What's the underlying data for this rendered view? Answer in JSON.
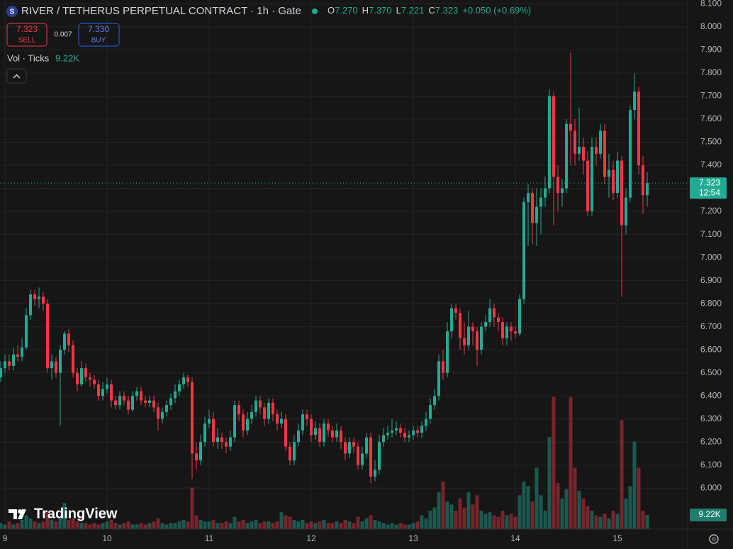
{
  "chart_data": {
    "type": "candlestick",
    "title": "RIVER / TETHERUS PERPETUAL CONTRACT · 1h · Gate",
    "categories": [
      null,
      "9",
      null,
      null,
      null,
      null,
      null,
      null,
      null,
      null,
      null,
      null,
      null,
      null,
      null,
      null,
      null,
      null,
      null,
      null,
      null,
      null,
      null,
      null,
      null,
      "10",
      null,
      null,
      null,
      null,
      null,
      null,
      null,
      null,
      null,
      null,
      null,
      null,
      null,
      null,
      null,
      null,
      null,
      null,
      null,
      null,
      null,
      null,
      null,
      "11",
      null,
      null,
      null,
      null,
      null,
      null,
      null,
      null,
      null,
      null,
      null,
      null,
      null,
      null,
      null,
      null,
      null,
      null,
      null,
      null,
      null,
      null,
      null,
      "12",
      null,
      null,
      null,
      null,
      null,
      null,
      null,
      null,
      null,
      null,
      null,
      null,
      null,
      null,
      null,
      null,
      null,
      null,
      null,
      null,
      null,
      null,
      null,
      "13",
      null,
      null,
      null,
      null,
      null,
      null,
      null,
      null,
      null,
      null,
      null,
      null,
      null,
      null,
      null,
      null,
      null,
      null,
      null,
      null,
      null,
      null,
      null,
      "14",
      null,
      null,
      null,
      null,
      null,
      null,
      null,
      null,
      null,
      null,
      null,
      null,
      null,
      null,
      null,
      null,
      null,
      null,
      null,
      null,
      null,
      null,
      null,
      "15",
      null,
      null,
      null,
      null,
      null,
      null,
      null
    ],
    "open": [
      6.48,
      6.52,
      6.55,
      6.53,
      6.58,
      6.57,
      6.61,
      6.75,
      6.84,
      6.82,
      6.83,
      6.8,
      6.52,
      6.55,
      6.5,
      6.6,
      6.67,
      6.62,
      6.5,
      6.45,
      6.52,
      6.48,
      6.47,
      6.45,
      6.4,
      6.43,
      6.45,
      6.38,
      6.36,
      6.4,
      6.38,
      6.34,
      6.4,
      6.42,
      6.38,
      6.37,
      6.38,
      6.35,
      6.3,
      6.33,
      6.36,
      6.39,
      6.42,
      6.45,
      6.48,
      6.46,
      6.15,
      6.12,
      6.2,
      6.28,
      6.3,
      6.2,
      6.22,
      6.2,
      6.18,
      6.22,
      6.36,
      6.32,
      6.25,
      6.3,
      6.33,
      6.38,
      6.35,
      6.3,
      6.37,
      6.32,
      6.28,
      6.3,
      6.18,
      6.12,
      6.2,
      6.25,
      6.32,
      6.3,
      6.23,
      6.26,
      6.2,
      6.28,
      6.25,
      6.22,
      6.25,
      6.2,
      6.15,
      6.2,
      6.18,
      6.1,
      6.15,
      6.22,
      6.05,
      6.08,
      6.2,
      6.23,
      6.24,
      6.25,
      6.26,
      6.24,
      6.22,
      6.23,
      6.25,
      6.24,
      6.27,
      6.3,
      6.36,
      6.4,
      6.55,
      6.5,
      6.68,
      6.78,
      6.76,
      6.65,
      6.62,
      6.7,
      6.68,
      6.6,
      6.7,
      6.72,
      6.78,
      6.74,
      6.72,
      6.65,
      6.7,
      6.68,
      6.67,
      6.82,
      7.24,
      7.28,
      7.15,
      7.22,
      7.26,
      7.3,
      7.7,
      7.35,
      7.28,
      7.3,
      7.58,
      7.55,
      7.45,
      7.48,
      7.42,
      7.2,
      7.48,
      7.45,
      7.55,
      7.35,
      7.38,
      7.28,
      7.42,
      7.14,
      7.26,
      7.64,
      7.72,
      7.4,
      7.27
    ],
    "high": [
      6.55,
      6.58,
      6.58,
      6.61,
      6.62,
      6.65,
      6.78,
      6.86,
      6.86,
      6.87,
      6.85,
      6.82,
      6.58,
      6.57,
      6.62,
      6.68,
      6.69,
      6.64,
      6.52,
      6.55,
      6.54,
      6.5,
      6.49,
      6.47,
      6.46,
      6.48,
      6.47,
      6.4,
      6.42,
      6.42,
      6.4,
      6.42,
      6.44,
      6.44,
      6.4,
      6.4,
      6.4,
      6.37,
      6.35,
      6.38,
      6.41,
      6.45,
      6.47,
      6.5,
      6.49,
      6.48,
      6.2,
      6.23,
      6.31,
      6.34,
      6.33,
      6.26,
      6.24,
      6.22,
      6.25,
      6.38,
      6.38,
      6.34,
      6.33,
      6.36,
      6.4,
      6.4,
      6.37,
      6.39,
      6.39,
      6.34,
      6.33,
      6.32,
      6.2,
      6.23,
      6.28,
      6.34,
      6.34,
      6.32,
      6.29,
      6.28,
      6.3,
      6.3,
      6.27,
      6.28,
      6.27,
      6.22,
      6.22,
      6.22,
      6.2,
      6.18,
      6.24,
      6.24,
      6.12,
      6.23,
      6.26,
      6.27,
      6.3,
      6.29,
      6.28,
      6.26,
      6.25,
      6.27,
      6.27,
      6.29,
      6.33,
      6.39,
      6.43,
      6.58,
      6.6,
      6.72,
      6.8,
      6.8,
      6.78,
      6.72,
      6.77,
      6.72,
      6.7,
      6.72,
      6.75,
      6.82,
      6.8,
      6.76,
      6.74,
      6.72,
      6.72,
      6.7,
      6.84,
      7.26,
      7.32,
      7.3,
      7.3,
      7.3,
      7.35,
      7.73,
      7.72,
      7.4,
      7.34,
      7.6,
      7.89,
      7.6,
      7.65,
      7.52,
      7.46,
      7.52,
      7.52,
      7.58,
      7.58,
      7.45,
      7.42,
      7.46,
      7.44,
      7.3,
      7.66,
      7.8,
      7.74,
      7.44,
      7.37
    ],
    "low": [
      6.46,
      6.5,
      6.51,
      6.51,
      6.55,
      6.55,
      6.6,
      6.73,
      6.79,
      6.78,
      6.77,
      6.5,
      6.47,
      6.48,
      6.27,
      6.58,
      6.59,
      6.48,
      6.42,
      6.44,
      6.46,
      6.44,
      6.43,
      6.38,
      6.38,
      6.41,
      6.35,
      6.34,
      6.34,
      6.36,
      6.32,
      6.33,
      6.38,
      6.36,
      6.35,
      6.35,
      6.33,
      6.25,
      6.28,
      6.31,
      6.34,
      6.37,
      6.4,
      6.43,
      6.44,
      6.04,
      6.08,
      6.1,
      6.18,
      6.26,
      6.18,
      6.17,
      6.17,
      6.15,
      6.16,
      6.2,
      6.29,
      6.22,
      6.23,
      6.28,
      6.31,
      6.32,
      6.27,
      6.28,
      6.29,
      6.25,
      6.26,
      6.16,
      6.1,
      6.1,
      6.18,
      6.23,
      6.27,
      6.2,
      6.21,
      6.18,
      6.18,
      6.22,
      6.2,
      6.2,
      6.17,
      6.12,
      6.13,
      6.15,
      6.08,
      6.08,
      6.13,
      6.02,
      6.03,
      6.06,
      6.18,
      6.21,
      6.22,
      6.23,
      6.22,
      6.2,
      6.2,
      6.21,
      6.22,
      6.22,
      6.25,
      6.28,
      6.34,
      6.38,
      6.47,
      6.48,
      6.65,
      6.73,
      6.6,
      6.58,
      6.6,
      6.62,
      6.53,
      6.58,
      6.68,
      6.7,
      6.7,
      6.68,
      6.62,
      6.62,
      6.64,
      6.65,
      6.66,
      6.8,
      7.05,
      7.06,
      7.05,
      7.1,
      7.22,
      7.28,
      7.14,
      7.2,
      7.22,
      7.28,
      7.4,
      7.4,
      7.42,
      7.36,
      7.18,
      7.18,
      7.4,
      7.43,
      7.32,
      7.26,
      7.25,
      7.26,
      6.83,
      7.1,
      7.24,
      7.6,
      7.36,
      7.19,
      7.221
    ],
    "close": [
      6.52,
      6.55,
      6.53,
      6.58,
      6.57,
      6.61,
      6.75,
      6.84,
      6.82,
      6.83,
      6.8,
      6.52,
      6.55,
      6.5,
      6.6,
      6.67,
      6.62,
      6.5,
      6.45,
      6.52,
      6.48,
      6.47,
      6.45,
      6.4,
      6.43,
      6.45,
      6.38,
      6.36,
      6.4,
      6.38,
      6.34,
      6.4,
      6.42,
      6.38,
      6.37,
      6.38,
      6.35,
      6.3,
      6.33,
      6.36,
      6.39,
      6.42,
      6.45,
      6.48,
      6.46,
      6.15,
      6.12,
      6.2,
      6.28,
      6.3,
      6.2,
      6.22,
      6.2,
      6.18,
      6.22,
      6.36,
      6.32,
      6.25,
      6.3,
      6.33,
      6.38,
      6.35,
      6.3,
      6.37,
      6.32,
      6.28,
      6.3,
      6.18,
      6.12,
      6.2,
      6.25,
      6.32,
      6.3,
      6.23,
      6.26,
      6.2,
      6.28,
      6.25,
      6.22,
      6.25,
      6.2,
      6.15,
      6.2,
      6.18,
      6.1,
      6.15,
      6.22,
      6.05,
      6.08,
      6.2,
      6.23,
      6.24,
      6.25,
      6.26,
      6.24,
      6.22,
      6.23,
      6.25,
      6.24,
      6.27,
      6.3,
      6.36,
      6.4,
      6.55,
      6.5,
      6.68,
      6.78,
      6.76,
      6.65,
      6.62,
      6.7,
      6.68,
      6.6,
      6.7,
      6.72,
      6.78,
      6.74,
      6.72,
      6.65,
      6.7,
      6.68,
      6.67,
      6.82,
      7.24,
      7.28,
      7.15,
      7.22,
      7.26,
      7.3,
      7.7,
      7.35,
      7.28,
      7.3,
      7.58,
      7.55,
      7.45,
      7.48,
      7.42,
      7.2,
      7.48,
      7.45,
      7.55,
      7.35,
      7.38,
      7.28,
      7.42,
      7.14,
      7.26,
      7.64,
      7.72,
      7.4,
      7.27,
      7.323
    ],
    "volume": [
      4000,
      3000,
      5000,
      3000,
      4000,
      6000,
      9000,
      7000,
      5000,
      4000,
      5000,
      12000,
      6000,
      5000,
      8000,
      17000,
      6000,
      7000,
      5000,
      4000,
      4000,
      3000,
      4000,
      3000,
      4000,
      5000,
      6000,
      4000,
      3000,
      4000,
      5000,
      3000,
      3000,
      4000,
      3000,
      4000,
      5000,
      7000,
      4000,
      3000,
      4000,
      4000,
      5000,
      6000,
      5000,
      27000,
      9000,
      6000,
      5000,
      5000,
      6000,
      4000,
      4000,
      5000,
      4000,
      8000,
      5000,
      6000,
      4000,
      5000,
      6000,
      4000,
      5000,
      5000,
      4000,
      5000,
      11000,
      9000,
      8000,
      6000,
      5000,
      6000,
      4000,
      5000,
      4000,
      5000,
      6000,
      4000,
      4000,
      5000,
      4000,
      6000,
      5000,
      4000,
      8000,
      5000,
      7000,
      9000,
      6000,
      5000,
      4000,
      3000,
      4000,
      3000,
      4000,
      3000,
      3000,
      4000,
      5000,
      9000,
      7000,
      12000,
      14000,
      24000,
      31000,
      18000,
      16000,
      12000,
      20000,
      14000,
      24000,
      16000,
      22000,
      12000,
      10000,
      11000,
      9000,
      8000,
      12000,
      9000,
      10000,
      8000,
      22000,
      31000,
      28000,
      18000,
      40000,
      22000,
      12000,
      60000,
      86000,
      30000,
      20000,
      26000,
      86000,
      40000,
      25000,
      20000,
      15000,
      12000,
      9000,
      8000,
      10000,
      7000,
      12000,
      10000,
      71000,
      20000,
      28000,
      57000,
      40000,
      12000,
      9220
    ],
    "volume_label": "9.22K",
    "ylim": [
      5.822,
      8.117
    ],
    "yticks": [
      {
        "value": 6.0,
        "label": "6.000"
      },
      {
        "value": 6.1,
        "label": "6.100"
      },
      {
        "value": 6.2,
        "label": "6.200"
      },
      {
        "value": 6.3,
        "label": "6.300"
      },
      {
        "value": 6.4,
        "label": "6.400"
      },
      {
        "value": 6.5,
        "label": "6.500"
      },
      {
        "value": 6.6,
        "label": "6.600"
      },
      {
        "value": 6.7,
        "label": "6.700"
      },
      {
        "value": 6.8,
        "label": "6.800"
      },
      {
        "value": 6.9,
        "label": "6.900"
      },
      {
        "value": 7.0,
        "label": "7.000"
      },
      {
        "value": 7.1,
        "label": "7.100"
      },
      {
        "value": 7.2,
        "label": "7.200"
      },
      {
        "value": 7.3,
        "label": "7.300"
      },
      {
        "value": 7.4,
        "label": "7.400"
      },
      {
        "value": 7.5,
        "label": "7.500"
      },
      {
        "value": 7.6,
        "label": "7.600"
      },
      {
        "value": 7.7,
        "label": "7.700"
      },
      {
        "value": 7.8,
        "label": "7.800"
      },
      {
        "value": 7.9,
        "label": "7.900"
      },
      {
        "value": 8.0,
        "label": "8.000"
      },
      {
        "value": 8.1,
        "label": "8.100"
      }
    ],
    "volume_lim": [
      0,
      120000
    ],
    "up_color": "#22ab94",
    "down_color": "#f23645",
    "grid": true,
    "countdown": "12:54"
  },
  "header": {
    "symbol_icon": "S",
    "ohlc": [
      {
        "label": "O",
        "value": "7.270"
      },
      {
        "label": "H",
        "value": "7.370"
      },
      {
        "label": "L",
        "value": "7.221"
      },
      {
        "label": "C",
        "value": "7.323"
      }
    ],
    "change": "+0.050 (+0.69%)",
    "sell": {
      "price": "7.323",
      "label": "SELL"
    },
    "spread": "0.007",
    "buy": {
      "price": "7.330",
      "label": "BUY"
    },
    "indicator": {
      "label": "Vol · Ticks",
      "value": "9.22K"
    }
  },
  "logo": "TradingView"
}
